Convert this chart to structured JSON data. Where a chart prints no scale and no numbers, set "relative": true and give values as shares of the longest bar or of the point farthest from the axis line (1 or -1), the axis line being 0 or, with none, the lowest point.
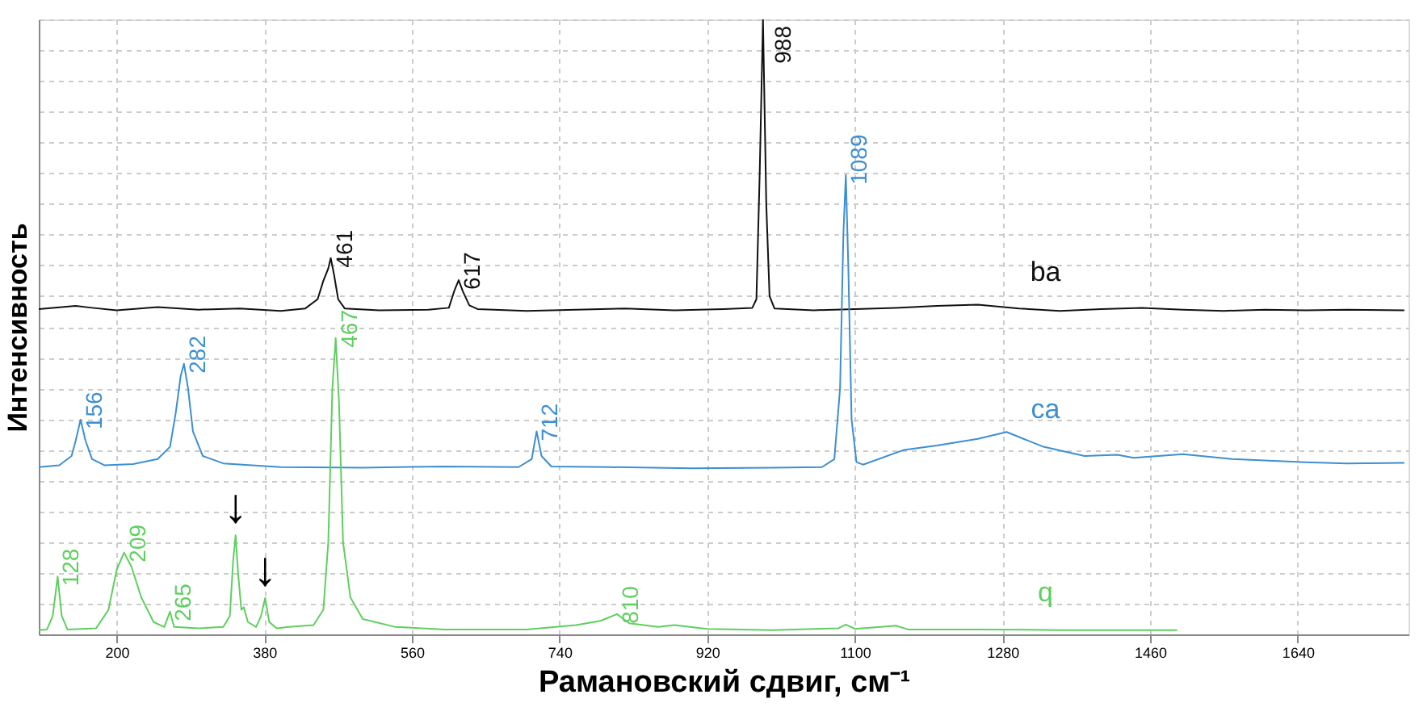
{
  "chart_data": {
    "type": "line",
    "relative": true,
    "xlabel": "Рамановский сдвиг, см⁻¹",
    "ylabel": "Интенсивность",
    "xlim": [
      105,
      1775
    ],
    "xticks": [
      200,
      380,
      560,
      740,
      920,
      1100,
      1280,
      1460,
      1640
    ],
    "grid": true,
    "tick_labels": "x",
    "marker": "none",
    "line_style": "solid",
    "series": [
      {
        "name": "ba",
        "color": "#111111",
        "x": [
          105,
          150,
          170,
          200,
          250,
          300,
          350,
          400,
          430,
          445,
          452,
          458,
          461,
          465,
          470,
          478,
          520,
          580,
          605,
          612,
          617,
          622,
          630,
          640,
          700,
          760,
          820,
          880,
          940,
          975,
          980,
          984,
          988,
          992,
          996,
          1002,
          1050,
          1100,
          1150,
          1200,
          1250,
          1300,
          1350,
          1400,
          1450,
          1500,
          1550,
          1600,
          1650,
          1700,
          1770
        ],
        "values": [
          0.529,
          0.534,
          0.531,
          0.527,
          0.532,
          0.528,
          0.53,
          0.526,
          0.53,
          0.545,
          0.575,
          0.595,
          0.612,
          0.585,
          0.545,
          0.53,
          0.527,
          0.528,
          0.531,
          0.56,
          0.576,
          0.558,
          0.535,
          0.529,
          0.526,
          0.528,
          0.53,
          0.527,
          0.529,
          0.531,
          0.545,
          0.75,
          1.0,
          0.7,
          0.55,
          0.53,
          0.527,
          0.529,
          0.531,
          0.534,
          0.536,
          0.53,
          0.526,
          0.529,
          0.531,
          0.528,
          0.526,
          0.528,
          0.527,
          0.528,
          0.527
        ]
      },
      {
        "name": "ca",
        "color": "#3d8fd1",
        "x": [
          105,
          130,
          145,
          150,
          156,
          162,
          170,
          185,
          220,
          250,
          265,
          272,
          278,
          282,
          287,
          293,
          305,
          330,
          400,
          500,
          600,
          690,
          706,
          712,
          718,
          730,
          800,
          900,
          1000,
          1060,
          1075,
          1082,
          1086,
          1089,
          1092,
          1096,
          1102,
          1110,
          1160,
          1200,
          1250,
          1285,
          1330,
          1380,
          1420,
          1440,
          1500,
          1560,
          1650,
          1700,
          1770
        ],
        "values": [
          0.272,
          0.275,
          0.29,
          0.315,
          0.349,
          0.315,
          0.285,
          0.275,
          0.277,
          0.285,
          0.305,
          0.36,
          0.42,
          0.44,
          0.4,
          0.33,
          0.29,
          0.278,
          0.272,
          0.271,
          0.273,
          0.272,
          0.285,
          0.33,
          0.29,
          0.273,
          0.272,
          0.27,
          0.271,
          0.272,
          0.285,
          0.4,
          0.65,
          0.747,
          0.6,
          0.35,
          0.28,
          0.276,
          0.3,
          0.307,
          0.318,
          0.329,
          0.305,
          0.29,
          0.292,
          0.287,
          0.293,
          0.285,
          0.28,
          0.278,
          0.279
        ]
      },
      {
        "name": "q",
        "color": "#5fcf5f",
        "x": [
          105,
          115,
          122,
          128,
          133,
          140,
          175,
          190,
          200,
          209,
          218,
          230,
          245,
          258,
          265,
          270,
          300,
          330,
          338,
          342,
          345,
          348,
          352,
          355,
          360,
          370,
          376,
          381,
          386,
          395,
          410,
          440,
          452,
          458,
          463,
          467,
          471,
          476,
          485,
          500,
          540,
          600,
          700,
          760,
          790,
          810,
          825,
          860,
          880,
          920,
          1000,
          1080,
          1089,
          1100,
          1150,
          1165,
          1250,
          1350,
          1493
        ],
        "values": [
          0.007,
          0.008,
          0.03,
          0.094,
          0.03,
          0.008,
          0.01,
          0.04,
          0.105,
          0.133,
          0.11,
          0.06,
          0.02,
          0.012,
          0.037,
          0.012,
          0.01,
          0.012,
          0.03,
          0.12,
          0.161,
          0.1,
          0.04,
          0.044,
          0.02,
          0.012,
          0.03,
          0.059,
          0.02,
          0.01,
          0.012,
          0.015,
          0.04,
          0.15,
          0.4,
          0.482,
          0.38,
          0.15,
          0.06,
          0.025,
          0.012,
          0.008,
          0.008,
          0.015,
          0.022,
          0.033,
          0.018,
          0.012,
          0.015,
          0.009,
          0.007,
          0.01,
          0.016,
          0.009,
          0.014,
          0.008,
          0.008,
          0.007,
          0.007
        ]
      }
    ],
    "annotations": [
      {
        "text": "461",
        "x": 461,
        "y": 0.612
      },
      {
        "text": "617",
        "x": 617,
        "y": 0.576
      },
      {
        "text": "988",
        "x": 988,
        "y": 1.0
      },
      {
        "text": "156",
        "x": 156,
        "y": 0.349
      },
      {
        "text": "282",
        "x": 282,
        "y": 0.44
      },
      {
        "text": "712",
        "x": 712,
        "y": 0.33
      },
      {
        "text": "1089",
        "x": 1089,
        "y": 0.747
      },
      {
        "text": "128",
        "x": 128,
        "y": 0.094
      },
      {
        "text": "209",
        "x": 209,
        "y": 0.133
      },
      {
        "text": "265",
        "x": 265,
        "y": 0.037
      },
      {
        "text": "467",
        "x": 467,
        "y": 0.482
      },
      {
        "text": "810",
        "x": 810,
        "y": 0.033
      },
      {
        "text": "↓",
        "x": 345,
        "y": 0.161
      },
      {
        "text": "↓",
        "x": 381,
        "y": 0.059
      }
    ]
  }
}
